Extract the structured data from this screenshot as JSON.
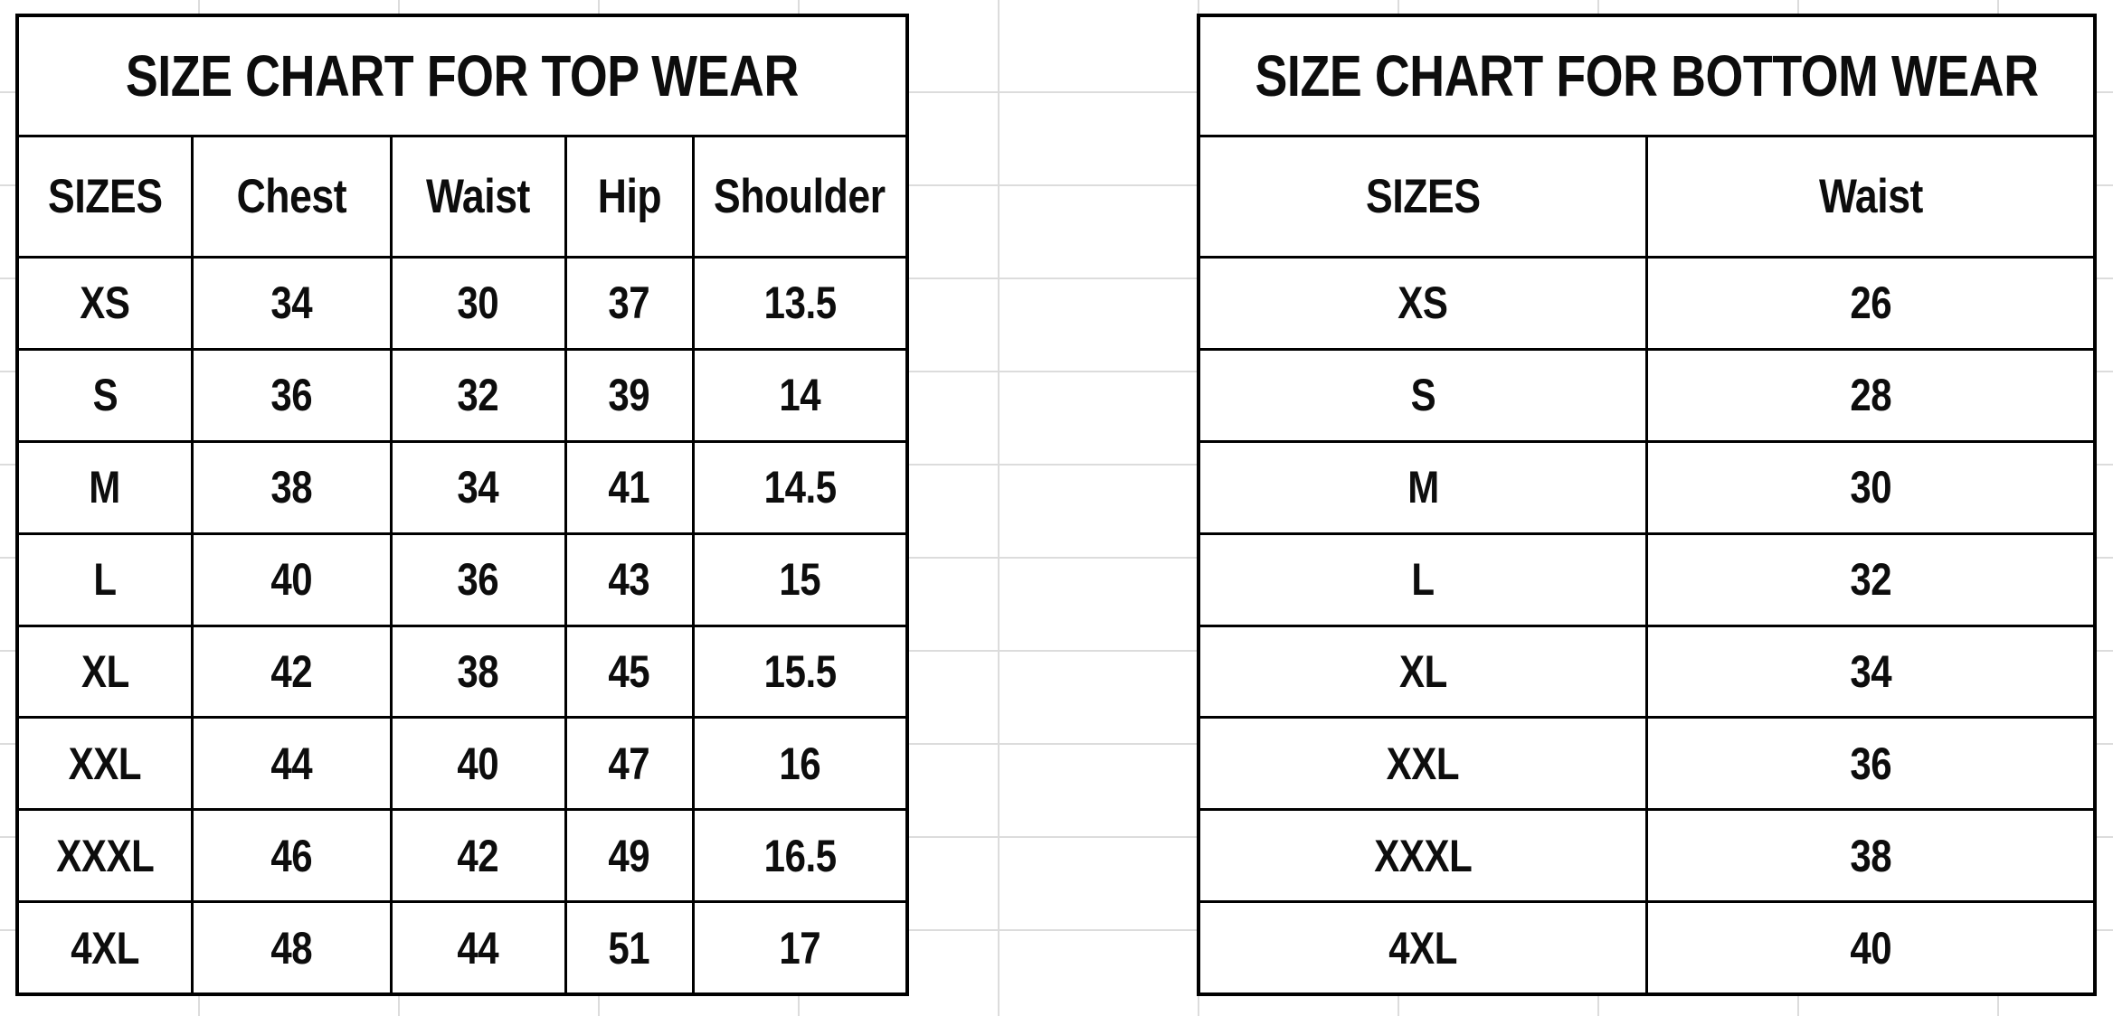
{
  "colors": {
    "background": "#ffffff",
    "table_border": "#000000",
    "text": "#0d0d0d",
    "spreadsheet_gridline": "#dcdcdc"
  },
  "chart_data": [
    {
      "type": "table",
      "title": "SIZE CHART FOR TOP WEAR",
      "columns": [
        "SIZES",
        "Chest",
        "Waist",
        "Hip",
        "Shoulder"
      ],
      "rows": [
        [
          "XS",
          "34",
          "30",
          "37",
          "13.5"
        ],
        [
          "S",
          "36",
          "32",
          "39",
          "14"
        ],
        [
          "M",
          "38",
          "34",
          "41",
          "14.5"
        ],
        [
          "L",
          "40",
          "36",
          "43",
          "15"
        ],
        [
          "XL",
          "42",
          "38",
          "45",
          "15.5"
        ],
        [
          "XXL",
          "44",
          "40",
          "47",
          "16"
        ],
        [
          "XXXL",
          "46",
          "42",
          "49",
          "16.5"
        ],
        [
          "4XL",
          "48",
          "44",
          "51",
          "17"
        ]
      ]
    },
    {
      "type": "table",
      "title": "SIZE CHART FOR BOTTOM WEAR",
      "columns": [
        "SIZES",
        "Waist"
      ],
      "rows": [
        [
          "XS",
          "26"
        ],
        [
          "S",
          "28"
        ],
        [
          "M",
          "30"
        ],
        [
          "L",
          "32"
        ],
        [
          "XL",
          "34"
        ],
        [
          "XXL",
          "36"
        ],
        [
          "XXXL",
          "38"
        ],
        [
          "4XL",
          "40"
        ]
      ]
    }
  ]
}
